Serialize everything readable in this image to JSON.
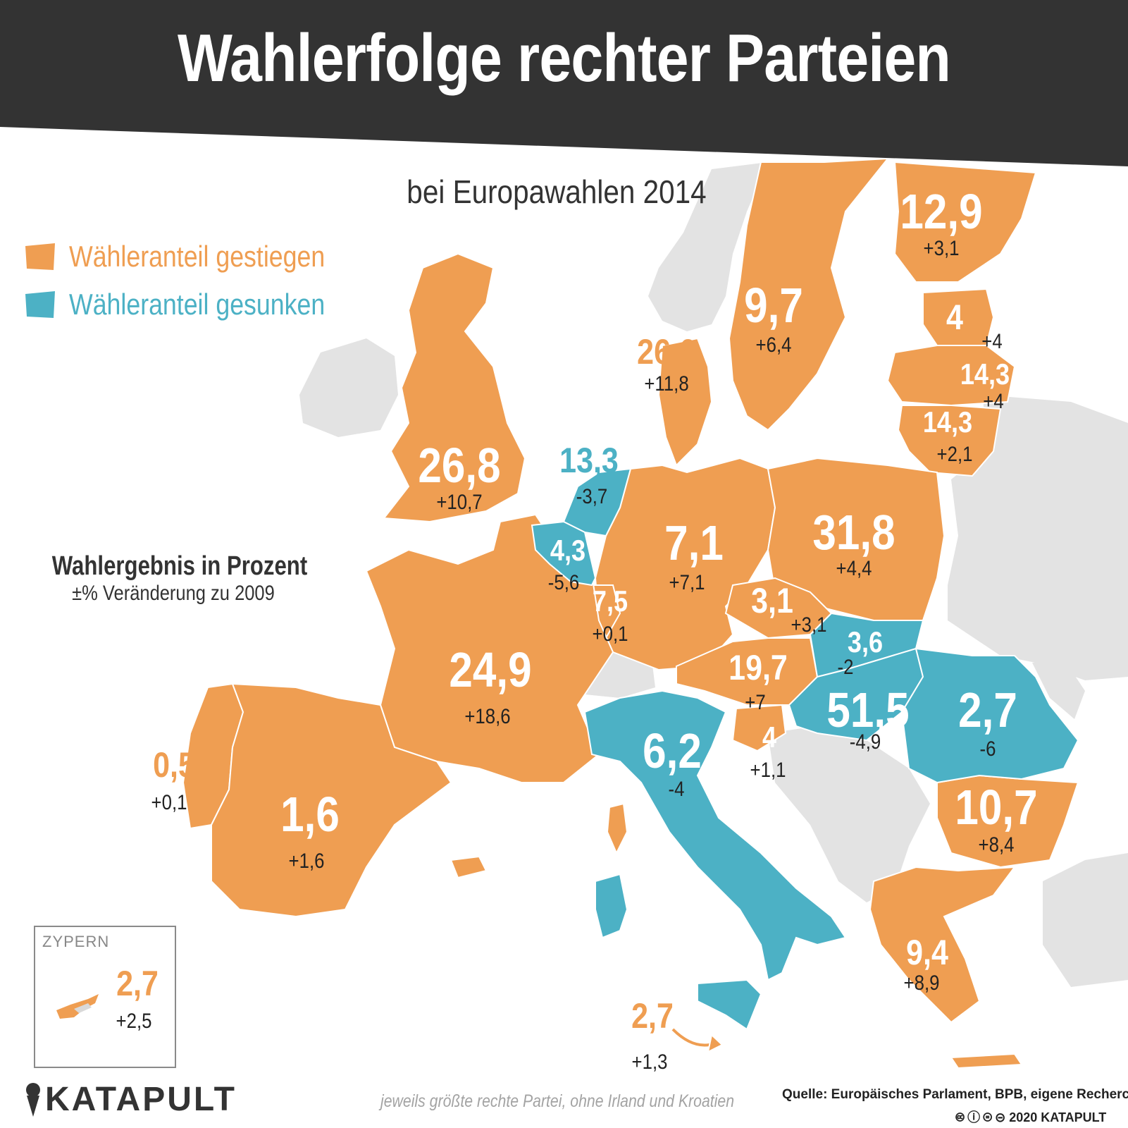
{
  "title": "Wahlerfolge rechter Parteien",
  "subtitle": "bei Europawahlen 2014",
  "legend": {
    "increase": {
      "label": "Wähleranteil gestiegen",
      "color": "#ef9e52"
    },
    "decrease": {
      "label": "Wähleranteil gesunken",
      "color": "#4cb1c5"
    }
  },
  "explanation": {
    "line1": "Wahlergebnis in Prozent",
    "line2": "±% Veränderung zu 2009"
  },
  "countries": {
    "uk": {
      "value": "26,8",
      "change": "+10,7",
      "trend": "increase"
    },
    "denmark": {
      "value": "26,6",
      "change": "+11,8",
      "trend": "increase"
    },
    "sweden": {
      "value": "9,7",
      "change": "+6,4",
      "trend": "increase"
    },
    "finland": {
      "value": "12,9",
      "change": "+3,1",
      "trend": "increase"
    },
    "estonia": {
      "value": "4",
      "change": "+4",
      "trend": "increase"
    },
    "latvia": {
      "value": "14,3",
      "change": "+4",
      "trend": "increase"
    },
    "lithuania": {
      "value": "14,3",
      "change": "+2,1",
      "trend": "increase"
    },
    "netherlands": {
      "value": "13,3",
      "change": "-3,7",
      "trend": "decrease"
    },
    "belgium": {
      "value": "4,3",
      "change": "-5,6",
      "trend": "decrease"
    },
    "luxembourg": {
      "value": "7,5",
      "change": "+0,1",
      "trend": "increase"
    },
    "germany": {
      "value": "7,1",
      "change": "+7,1",
      "trend": "increase"
    },
    "poland": {
      "value": "31,8",
      "change": "+4,4",
      "trend": "increase"
    },
    "czechia": {
      "value": "3,1",
      "change": "+3,1",
      "trend": "increase"
    },
    "slovakia": {
      "value": "3,6",
      "change": "-2",
      "trend": "decrease"
    },
    "austria": {
      "value": "19,7",
      "change": "+7",
      "trend": "increase"
    },
    "slovenia": {
      "value": "4",
      "change": "+1,1",
      "trend": "increase"
    },
    "hungary": {
      "value": "51,5",
      "change": "-4,9",
      "trend": "decrease"
    },
    "romania": {
      "value": "2,7",
      "change": "-6",
      "trend": "decrease"
    },
    "bulgaria": {
      "value": "10,7",
      "change": "+8,4",
      "trend": "increase"
    },
    "greece": {
      "value": "9,4",
      "change": "+8,9",
      "trend": "increase"
    },
    "france": {
      "value": "24,9",
      "change": "+18,6",
      "trend": "increase"
    },
    "portugal": {
      "value": "0,5",
      "change": "+0,1",
      "trend": "increase"
    },
    "spain": {
      "value": "1,6",
      "change": "+1,6",
      "trend": "increase"
    },
    "italy": {
      "value": "6,2",
      "change": "-4",
      "trend": "decrease"
    },
    "malta": {
      "value": "2,7",
      "change": "+1,3",
      "trend": "increase"
    },
    "cyprus": {
      "label": "ZYPERN",
      "value": "2,7",
      "change": "+2,5",
      "trend": "increase"
    }
  },
  "colors": {
    "increase": "#ef9e52",
    "decrease": "#4cb1c5",
    "other": "#e3e3e3",
    "header": "#333333"
  },
  "footer": {
    "logo": "KATAPULT",
    "note": "jeweils größte rechte Partei, ohne Irland und Kroatien",
    "source": "Quelle: Europäisches Parlament, BPB, eigene Recherche",
    "copyright": "2020 KATAPULT"
  }
}
